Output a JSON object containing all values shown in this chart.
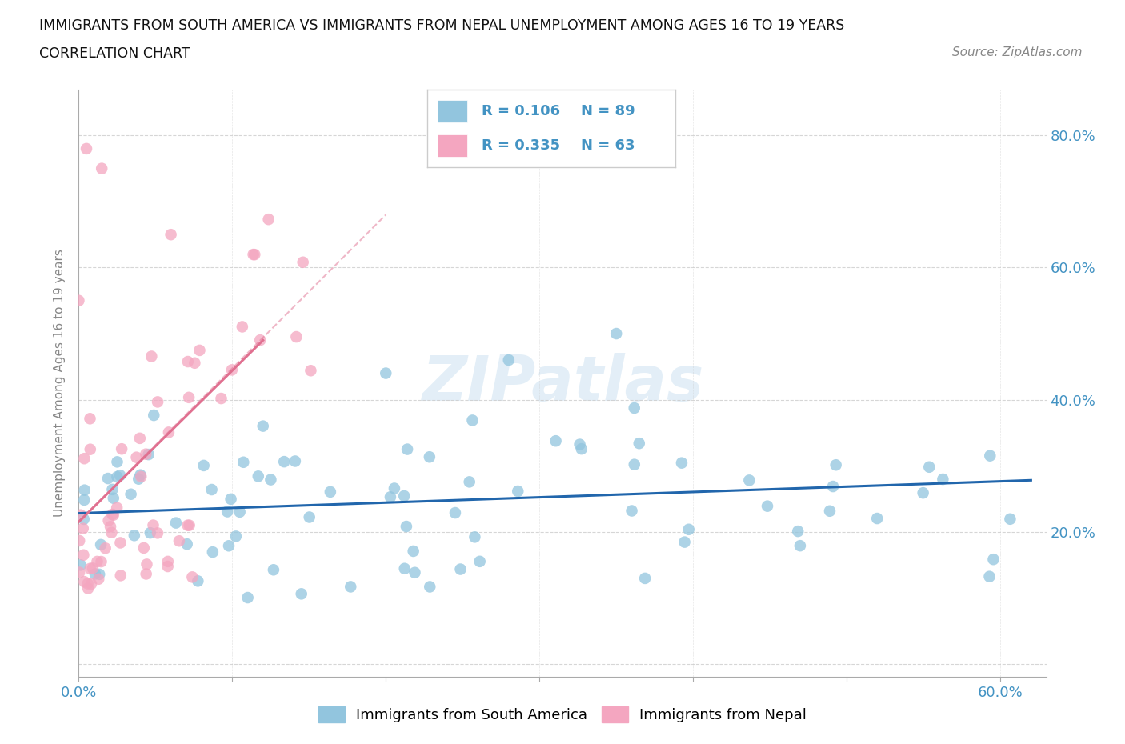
{
  "title_line1": "IMMIGRANTS FROM SOUTH AMERICA VS IMMIGRANTS FROM NEPAL UNEMPLOYMENT AMONG AGES 16 TO 19 YEARS",
  "title_line2": "CORRELATION CHART",
  "source_text": "Source: ZipAtlas.com",
  "xlim": [
    0.0,
    0.63
  ],
  "ylim": [
    -0.02,
    0.87
  ],
  "x_tick_positions": [
    0.0,
    0.1,
    0.2,
    0.3,
    0.4,
    0.5,
    0.6
  ],
  "x_tick_labels": [
    "0.0%",
    "",
    "",
    "",
    "",
    "",
    "60.0%"
  ],
  "y_tick_positions": [
    0.0,
    0.2,
    0.4,
    0.6,
    0.8
  ],
  "y_tick_labels": [
    "",
    "20.0%",
    "40.0%",
    "60.0%",
    "80.0%"
  ],
  "watermark": "ZIPatlas",
  "legend_r1": "R = 0.106",
  "legend_n1": "N = 89",
  "legend_r2": "R = 0.335",
  "legend_n2": "N = 63",
  "color_blue_scatter": "#92c5de",
  "color_pink_scatter": "#f4a6c0",
  "color_blue_text": "#4393c3",
  "color_pink_line": "#e07090",
  "color_blue_line": "#2166ac",
  "color_grid": "#cccccc",
  "trend_blue_x0": 0.0,
  "trend_blue_y0": 0.228,
  "trend_blue_x1": 0.62,
  "trend_blue_y1": 0.278,
  "trend_pink_solid_x0": 0.0,
  "trend_pink_solid_y0": 0.215,
  "trend_pink_solid_x1": 0.12,
  "trend_pink_solid_y1": 0.49,
  "trend_pink_dash_x0": 0.0,
  "trend_pink_dash_y0": 0.215,
  "trend_pink_dash_x1": 0.2,
  "trend_pink_dash_y1": 0.68
}
